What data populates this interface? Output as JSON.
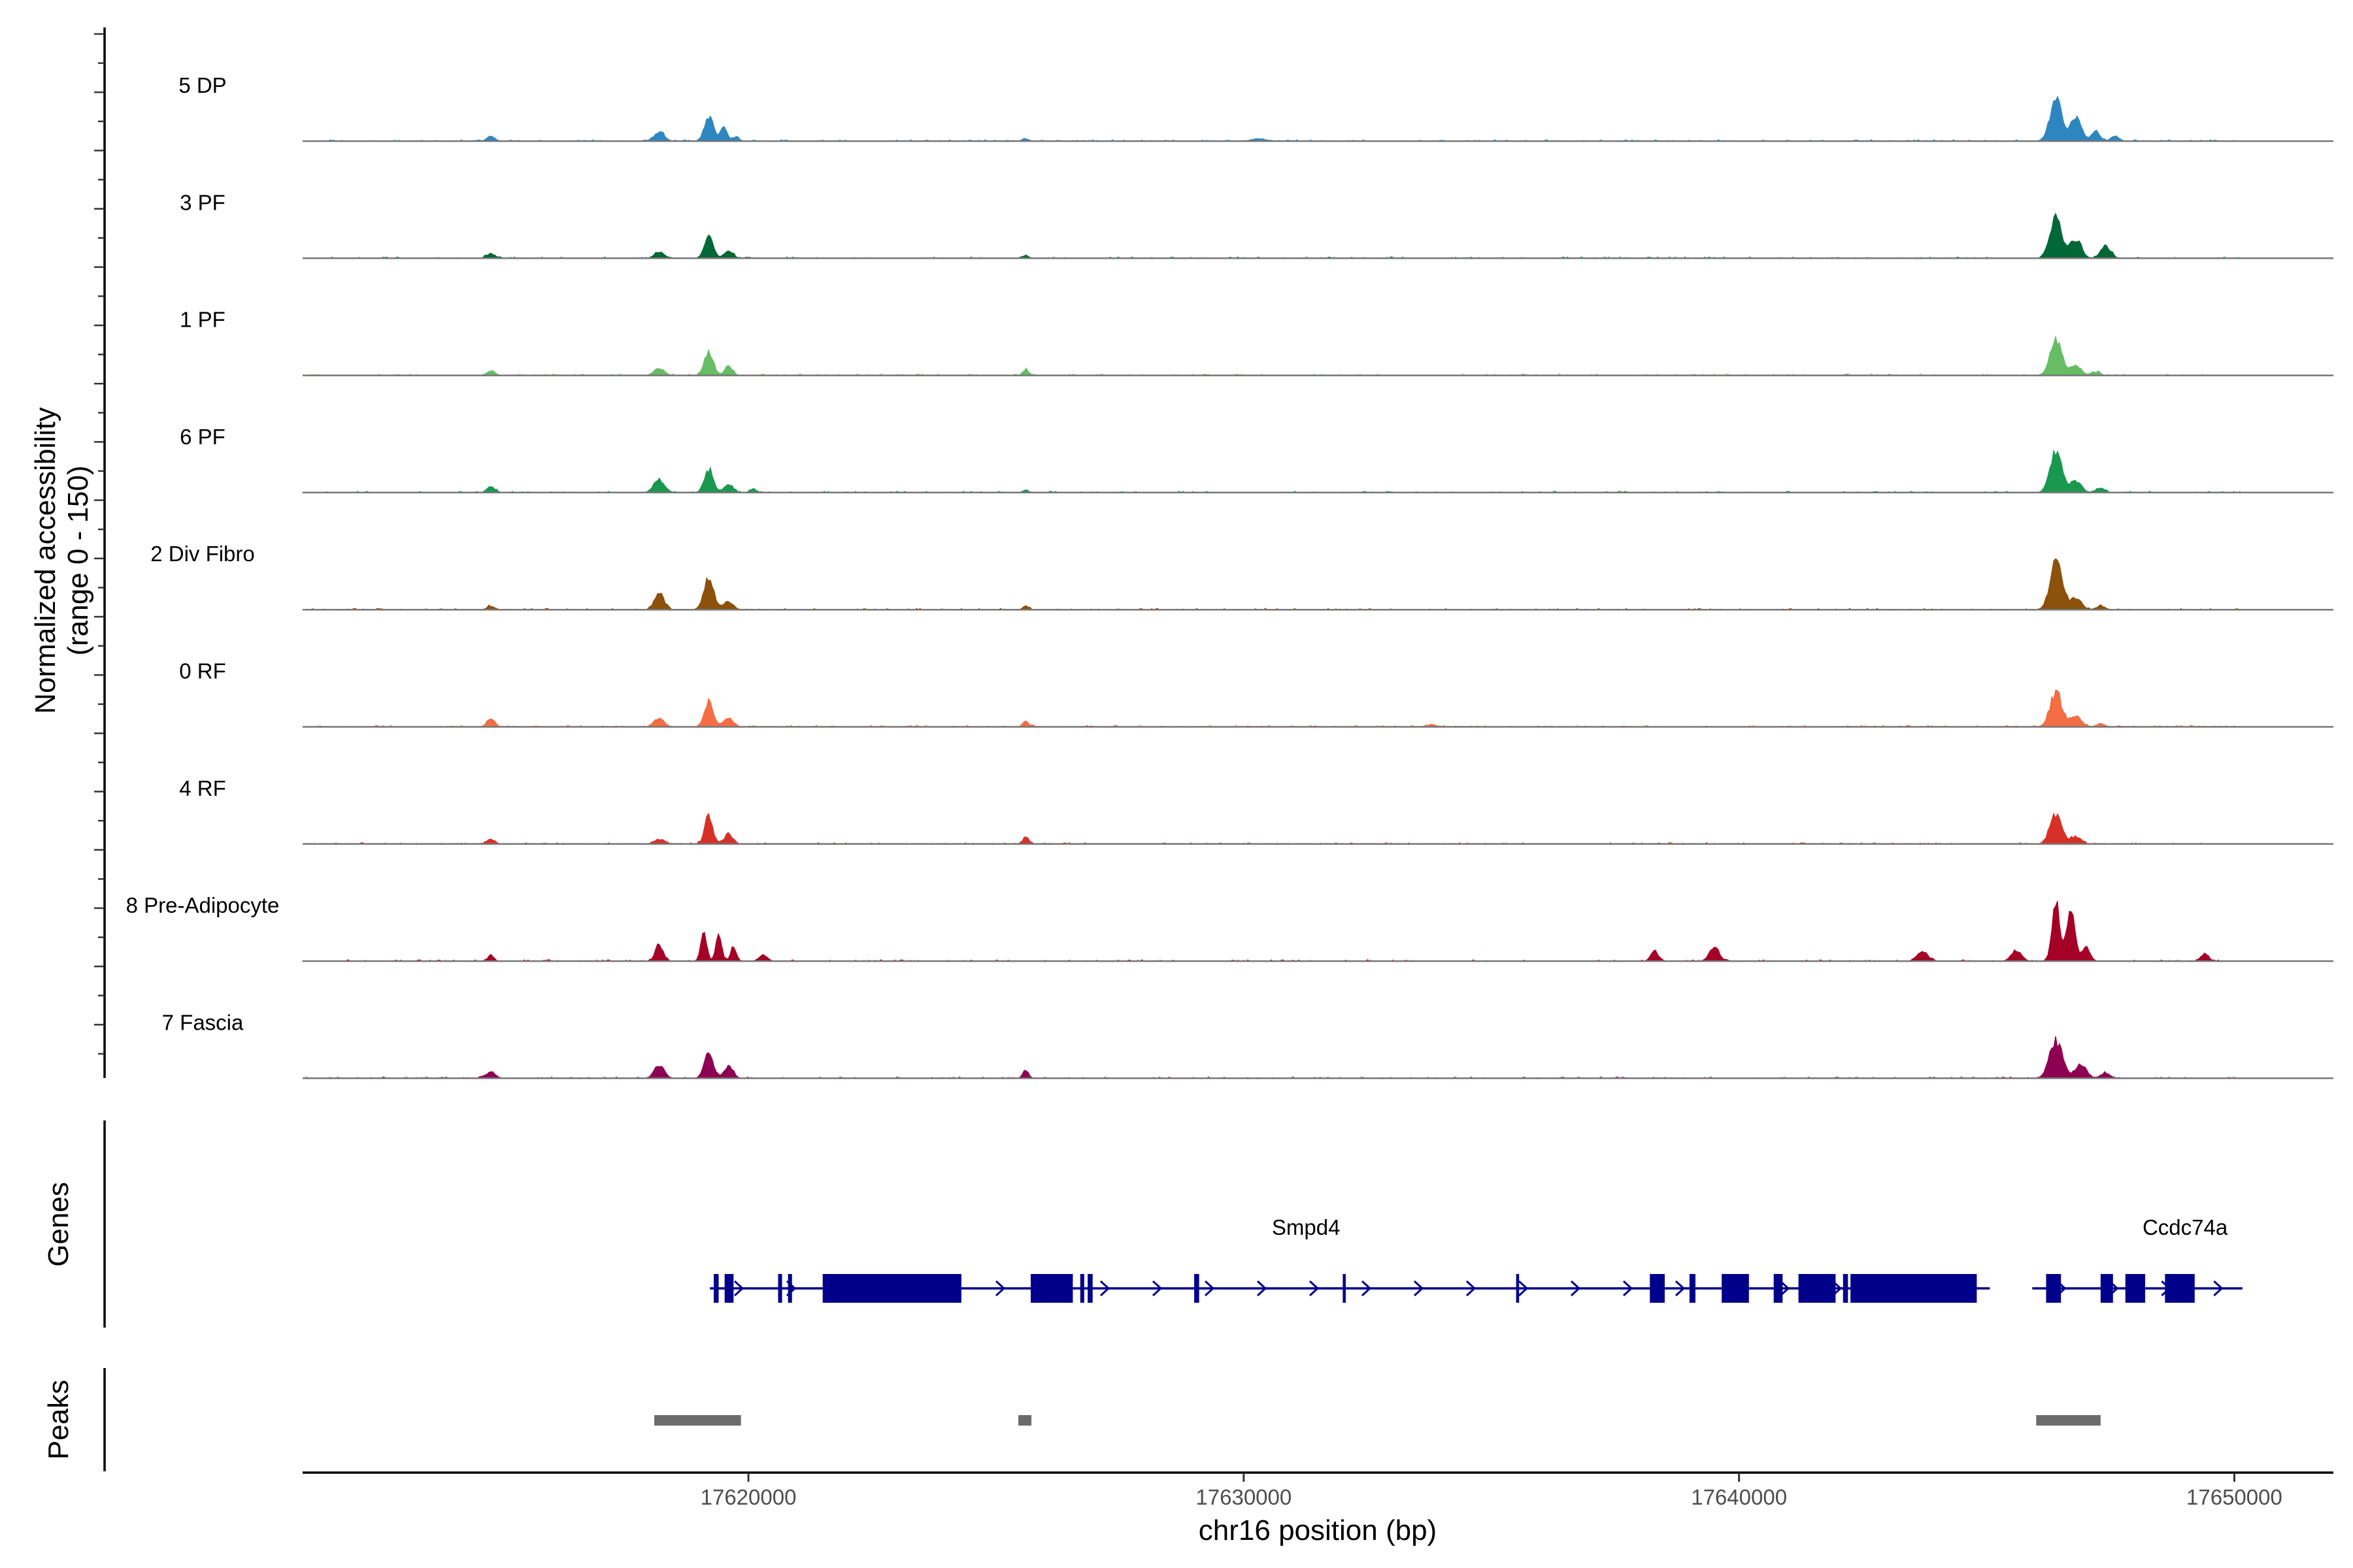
{
  "chart_data": {
    "type": "coverage-track",
    "chromosome": "chr16",
    "xlabel": "chr16 position (bp)",
    "ylabel": "Normalized accessibility",
    "ylabel_range": "(range 0 - 150)",
    "ylim": [
      0,
      150
    ],
    "xlim": [
      17611000,
      17652000
    ],
    "x_ticks": [
      17620000,
      17630000,
      17640000,
      17650000
    ],
    "x_tick_labels": [
      "17620000",
      "17630000",
      "17640000",
      "17650000"
    ],
    "tracks": [
      {
        "name": "5 DP",
        "color": "#2e86c1",
        "peaks": [
          [
            17614800,
            8,
            80
          ],
          [
            17618200,
            16,
            100
          ],
          [
            17619200,
            42,
            90
          ],
          [
            17619500,
            22,
            70
          ],
          [
            17619750,
            8,
            60
          ],
          [
            17625600,
            4,
            60
          ],
          [
            17630300,
            4,
            150
          ],
          [
            17646400,
            70,
            120
          ],
          [
            17646800,
            38,
            110
          ],
          [
            17647200,
            16,
            90
          ],
          [
            17647600,
            8,
            80
          ]
        ]
      },
      {
        "name": "3 PF",
        "color": "#006837",
        "peaks": [
          [
            17614800,
            8,
            80
          ],
          [
            17618200,
            10,
            100
          ],
          [
            17619200,
            34,
            90
          ],
          [
            17619600,
            12,
            90
          ],
          [
            17625600,
            5,
            60
          ],
          [
            17646400,
            66,
            120
          ],
          [
            17646800,
            32,
            110
          ],
          [
            17647400,
            20,
            100
          ]
        ]
      },
      {
        "name": "1 PF",
        "color": "#66bd63",
        "peaks": [
          [
            17614800,
            8,
            80
          ],
          [
            17618200,
            12,
            100
          ],
          [
            17619200,
            40,
            90
          ],
          [
            17619600,
            15,
            80
          ],
          [
            17625600,
            10,
            60
          ],
          [
            17646400,
            58,
            120
          ],
          [
            17646800,
            18,
            100
          ],
          [
            17647200,
            6,
            90
          ]
        ]
      },
      {
        "name": "6 PF",
        "color": "#1a9850",
        "peaks": [
          [
            17614800,
            10,
            80
          ],
          [
            17618200,
            22,
            110
          ],
          [
            17619200,
            40,
            90
          ],
          [
            17619600,
            14,
            90
          ],
          [
            17620100,
            5,
            70
          ],
          [
            17625600,
            4,
            60
          ],
          [
            17646400,
            66,
            120
          ],
          [
            17646800,
            20,
            110
          ],
          [
            17647300,
            8,
            90
          ]
        ]
      },
      {
        "name": "2 Div Fibro",
        "color": "#8c510a",
        "peaks": [
          [
            17614800,
            6,
            80
          ],
          [
            17618200,
            26,
            100
          ],
          [
            17619200,
            52,
            100
          ],
          [
            17619600,
            14,
            90
          ],
          [
            17625600,
            6,
            60
          ],
          [
            17646400,
            82,
            120
          ],
          [
            17646800,
            20,
            110
          ],
          [
            17647300,
            6,
            90
          ]
        ]
      },
      {
        "name": "0 RF",
        "color": "#f46d43",
        "peaks": [
          [
            17614800,
            14,
            80
          ],
          [
            17618200,
            14,
            100
          ],
          [
            17619200,
            42,
            90
          ],
          [
            17619600,
            16,
            90
          ],
          [
            17625600,
            10,
            60
          ],
          [
            17633800,
            4,
            80
          ],
          [
            17646400,
            58,
            120
          ],
          [
            17646800,
            18,
            110
          ],
          [
            17647300,
            5,
            90
          ]
        ]
      },
      {
        "name": "4 RF",
        "color": "#d73027",
        "peaks": [
          [
            17614800,
            8,
            80
          ],
          [
            17618200,
            8,
            100
          ],
          [
            17619200,
            46,
            80
          ],
          [
            17619600,
            16,
            90
          ],
          [
            17625600,
            12,
            60
          ],
          [
            17646400,
            48,
            120
          ],
          [
            17646800,
            12,
            110
          ]
        ]
      },
      {
        "name": "8 Pre-Adipocyte",
        "color": "#a50026",
        "peaks": [
          [
            17614800,
            10,
            60
          ],
          [
            17618200,
            28,
            80
          ],
          [
            17619100,
            46,
            60
          ],
          [
            17619400,
            44,
            60
          ],
          [
            17619700,
            22,
            60
          ],
          [
            17620300,
            10,
            80
          ],
          [
            17638300,
            16,
            80
          ],
          [
            17639500,
            22,
            100
          ],
          [
            17643700,
            18,
            100
          ],
          [
            17645600,
            18,
            100
          ],
          [
            17646400,
            96,
            80
          ],
          [
            17646700,
            84,
            80
          ],
          [
            17647000,
            24,
            80
          ],
          [
            17649400,
            12,
            80
          ]
        ]
      },
      {
        "name": "7 Fascia",
        "color": "#8e0152",
        "peaks": [
          [
            17614800,
            10,
            90
          ],
          [
            17618200,
            22,
            100
          ],
          [
            17619200,
            46,
            90
          ],
          [
            17619600,
            20,
            90
          ],
          [
            17625600,
            12,
            60
          ],
          [
            17646400,
            62,
            130
          ],
          [
            17646900,
            24,
            110
          ],
          [
            17647400,
            8,
            100
          ]
        ]
      }
    ],
    "genes": {
      "title": "Genes",
      "color": "#00008b",
      "items": [
        {
          "name": "Smpd4",
          "start": 17619300,
          "end": 17644800,
          "strand": "+",
          "exons": [
            [
              17619300,
              17619400
            ],
            [
              17619520,
              17619700
            ],
            [
              17620600,
              17620680
            ],
            [
              17620800,
              17620880
            ],
            [
              17621500,
              17624300
            ],
            [
              17625700,
              17626550
            ],
            [
              17626700,
              17626780
            ],
            [
              17626850,
              17626950
            ],
            [
              17629000,
              17629100
            ],
            [
              17632000,
              17632060
            ],
            [
              17635500,
              17635560
            ],
            [
              17638200,
              17638500
            ],
            [
              17639000,
              17639120
            ],
            [
              17639650,
              17640200
            ],
            [
              17640700,
              17640880
            ],
            [
              17641200,
              17641950
            ],
            [
              17642100,
              17642200
            ],
            [
              17642250,
              17644800
            ]
          ]
        },
        {
          "name": "Ccdc74a",
          "start": 17646000,
          "end": 17649900,
          "strand": "+",
          "exons": [
            [
              17646200,
              17646500
            ],
            [
              17647300,
              17647550
            ],
            [
              17647800,
              17648200
            ],
            [
              17648600,
              17649200
            ]
          ]
        }
      ]
    },
    "peaks_track": {
      "title": "Peaks",
      "color": "#6b6b6b",
      "regions": [
        [
          17618100,
          17619850
        ],
        [
          17625450,
          17625700
        ],
        [
          17646000,
          17647300
        ]
      ]
    }
  }
}
